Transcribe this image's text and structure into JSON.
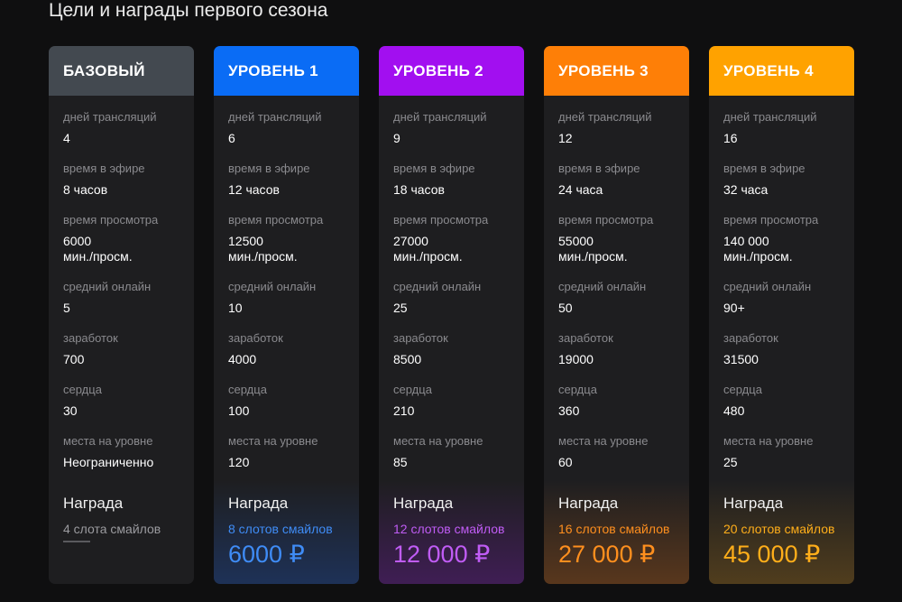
{
  "title": "Цели и награды первого сезона",
  "reward_heading": "Награда",
  "cards": [
    {
      "name": "БАЗОВЫЙ",
      "header_color": "#434950",
      "accent": "#9b9b9f",
      "glow": "rgba(0,0,0,0)",
      "stats": [
        {
          "label": "дней трансляций",
          "value": "4"
        },
        {
          "label": "время в эфире",
          "value": "8 часов"
        },
        {
          "label": "время просмотра",
          "value": "6000\nмин./просм."
        },
        {
          "label": "средний онлайн",
          "value": "5"
        },
        {
          "label": "заработок",
          "value": "700"
        },
        {
          "label": "сердца",
          "value": "30"
        },
        {
          "label": "места на уровне",
          "value": "Неограниченно"
        }
      ],
      "slots": "4 слота смайлов",
      "prize": ""
    },
    {
      "name": "УРОВЕНЬ 1",
      "header_color": "#0a6cf5",
      "accent": "#3f8cf6",
      "glow": "rgba(30,100,230,0.28)",
      "stats": [
        {
          "label": "дней трансляций",
          "value": "6"
        },
        {
          "label": "время в эфире",
          "value": "12 часов"
        },
        {
          "label": "время просмотра",
          "value": "12500\nмин./просм."
        },
        {
          "label": "средний онлайн",
          "value": "10"
        },
        {
          "label": "заработок",
          "value": "4000"
        },
        {
          "label": "сердца",
          "value": "100"
        },
        {
          "label": "места на уровне",
          "value": "120"
        }
      ],
      "slots": "8 слотов смайлов",
      "prize": "6000 ₽"
    },
    {
      "name": "УРОВЕНЬ 2",
      "header_color": "#a20ff0",
      "accent": "#c05cf5",
      "glow": "rgba(150,30,220,0.28)",
      "stats": [
        {
          "label": "дней трансляций",
          "value": "9"
        },
        {
          "label": "время в эфире",
          "value": "18 часов"
        },
        {
          "label": "время просмотра",
          "value": "27000\nмин./просм."
        },
        {
          "label": "средний онлайн",
          "value": "25"
        },
        {
          "label": "заработок",
          "value": "8500"
        },
        {
          "label": "сердца",
          "value": "210"
        },
        {
          "label": "места на уровне",
          "value": "85"
        }
      ],
      "slots": "12 слотов смайлов",
      "prize": "12 000 ₽"
    },
    {
      "name": "УРОВЕНЬ 3",
      "header_color": "#fe7f07",
      "accent": "#ff8f1e",
      "glow": "rgba(240,120,20,0.28)",
      "stats": [
        {
          "label": "дней трансляций",
          "value": "12"
        },
        {
          "label": "время в эфире",
          "value": "24 часа"
        },
        {
          "label": "время просмотра",
          "value": "55000\nмин./просм."
        },
        {
          "label": "средний онлайн",
          "value": "50"
        },
        {
          "label": "заработок",
          "value": "19000"
        },
        {
          "label": "сердца",
          "value": "360"
        },
        {
          "label": "места на уровне",
          "value": "60"
        }
      ],
      "slots": "16 слотов смайлов",
      "prize": "27 000 ₽"
    },
    {
      "name": "УРОВЕНЬ 4",
      "header_color": "#ffa200",
      "accent": "#ffae1a",
      "glow": "rgba(240,160,20,0.24)",
      "stats": [
        {
          "label": "дней трансляций",
          "value": "16"
        },
        {
          "label": "время в эфире",
          "value": "32 часа"
        },
        {
          "label": "время просмотра",
          "value": "140 000\nмин./просм."
        },
        {
          "label": "средний онлайн",
          "value": "90+"
        },
        {
          "label": "заработок",
          "value": "31500"
        },
        {
          "label": "сердца",
          "value": "480"
        },
        {
          "label": "места на уровне",
          "value": "25"
        }
      ],
      "slots": "20 слотов смайлов",
      "prize": "45 000 ₽"
    }
  ]
}
